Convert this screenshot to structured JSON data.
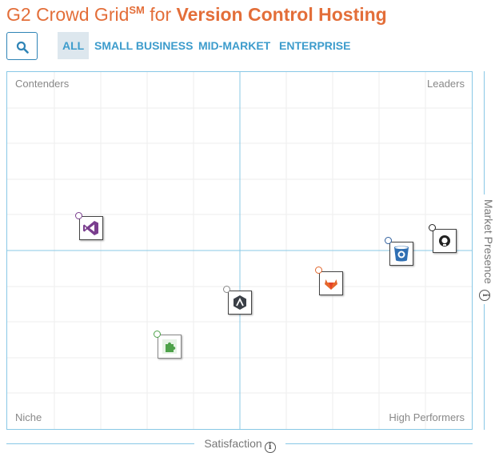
{
  "header": {
    "title_prefix": "G2 Crowd Grid",
    "title_sm": "SM",
    "title_for": " for ",
    "title_category": "Version Control Hosting"
  },
  "filters": [
    {
      "label": "ALL",
      "active": true
    },
    {
      "label": "SMALL BUSINESS",
      "active": false
    },
    {
      "label": "MID-MARKET",
      "active": false
    },
    {
      "label": "ENTERPRISE",
      "active": false
    }
  ],
  "grid": {
    "quadrants": {
      "top_left": "Contenders",
      "top_right": "Leaders",
      "bottom_left": "Niche",
      "bottom_right": "High Performers"
    },
    "x_axis_label": "Satisfaction",
    "y_axis_label": "Market Presence"
  },
  "vendors": [
    {
      "icon": "visual-studio-icon",
      "dot_color": "#7a3e8e"
    },
    {
      "icon": "bitbucket-icon",
      "dot_color": "#2f5f9e"
    },
    {
      "icon": "github-icon",
      "dot_color": "#222222"
    },
    {
      "icon": "gitlab-icon",
      "dot_color": "#e2672e"
    },
    {
      "icon": "aws-codecommit-icon",
      "dot_color": "#888888"
    },
    {
      "icon": "green-puzzle-icon",
      "dot_color": "#4ea24a"
    }
  ],
  "colors": {
    "title": "#e36e39",
    "filter": "#3d9ccc",
    "grid_border": "#88c8e6"
  }
}
